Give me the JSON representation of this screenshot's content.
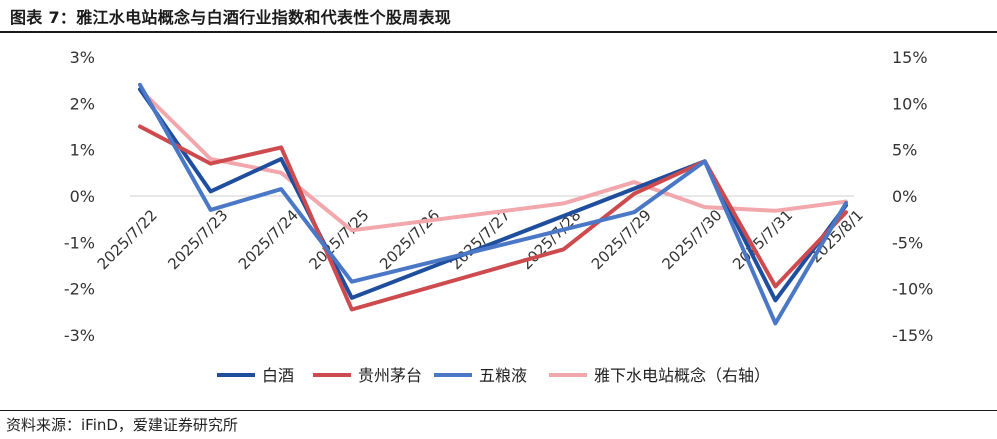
{
  "header": {
    "title": "图表 7：雅江水电站概念与白酒行业指数和代表性个股周表现"
  },
  "footer": {
    "source": "资料来源：iFinD，爱建证券研究所"
  },
  "chart_data": {
    "type": "line",
    "categories": [
      "2025/7/22",
      "2025/7/23",
      "2025/7/24",
      "2025/7/25",
      "2025/7/26",
      "2025/7/27",
      "2025/7/28",
      "2025/7/29",
      "2025/7/30",
      "2025/7/31",
      "2025/8/1"
    ],
    "y_left": {
      "ticks": [
        "3%",
        "2%",
        "1%",
        "0%",
        "-1%",
        "-2%",
        "-3%"
      ],
      "range": [
        -3,
        3
      ]
    },
    "y_right": {
      "ticks": [
        "15%",
        "10%",
        "5%",
        "0%",
        "-5%",
        "-10%",
        "-15%"
      ],
      "range": [
        -15,
        15
      ]
    },
    "legend_position": "bottom",
    "series": [
      {
        "name": "白酒",
        "axis": "left",
        "color": "#1f4e9f",
        "x": [
          0,
          1,
          2,
          3,
          8,
          9,
          10
        ],
        "values": [
          2.3,
          0.1,
          0.8,
          -2.2,
          0.75,
          -2.25,
          -0.2
        ]
      },
      {
        "name": "贵州茅台",
        "axis": "left",
        "color": "#cd4b4e",
        "x": [
          0,
          1,
          2,
          3,
          6,
          7,
          8,
          9,
          10
        ],
        "values": [
          1.5,
          0.7,
          1.05,
          -2.45,
          -1.15,
          0.05,
          0.75,
          -1.95,
          -0.35
        ]
      },
      {
        "name": "五粮液",
        "axis": "left",
        "color": "#4a78c6",
        "x": [
          0,
          1,
          2,
          3,
          7,
          8,
          9,
          10
        ],
        "values": [
          2.4,
          -0.3,
          0.15,
          -1.85,
          -0.35,
          0.75,
          -2.75,
          -0.15
        ]
      },
      {
        "name": "雅下水电站概念（右轴）",
        "axis": "right",
        "color": "#f2a7ac",
        "x": [
          0,
          1,
          2,
          3,
          6,
          7,
          8,
          9,
          10
        ],
        "values": [
          11.5,
          4,
          2.5,
          -3.7,
          -0.8,
          1.5,
          -1.2,
          -1.6,
          -0.6
        ]
      }
    ]
  }
}
